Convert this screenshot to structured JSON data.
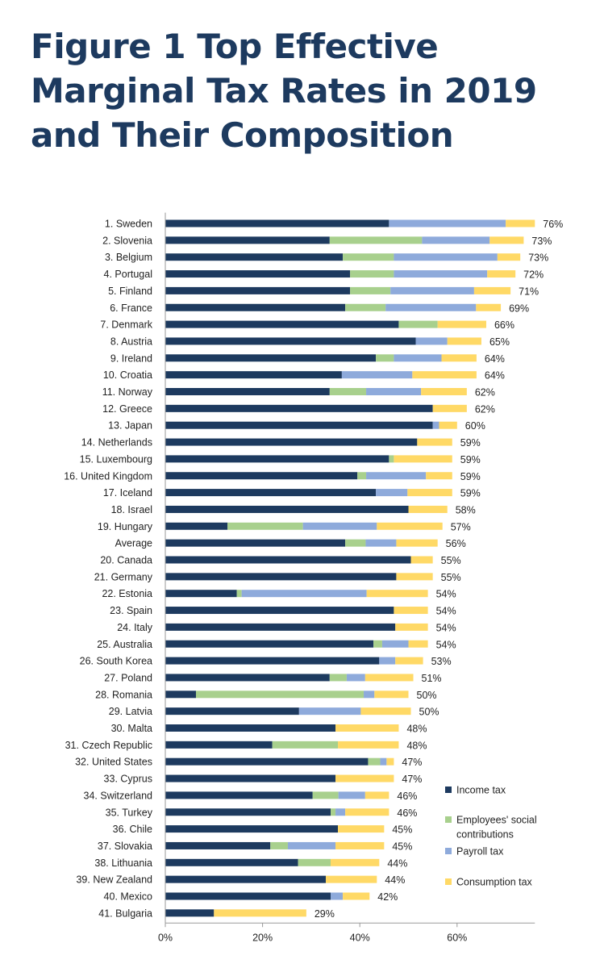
{
  "title": "Figure 1 Top Effective Marginal Tax Rates in 2019 and Their Composition",
  "colors": {
    "income": "#1d3a5f",
    "social": "#a8d08d",
    "payroll": "#8eaadb",
    "consumption": "#ffd966",
    "title": "#1d3a5f"
  },
  "chart_data": {
    "type": "bar",
    "orientation": "horizontal",
    "stacked": true,
    "title": "Figure 1 Top Effective Marginal Tax Rates in 2019 and Their Composition",
    "xlabel": "",
    "ylabel": "",
    "xlim": [
      0,
      76
    ],
    "x_ticks": [
      "0%",
      "20%",
      "40%",
      "60%"
    ],
    "legend_position": "right",
    "grid": false,
    "categories": [
      "1. Sweden",
      "2. Slovenia",
      "3. Belgium",
      "4. Portugal",
      "5. Finland",
      "6. France",
      "7. Denmark",
      "8. Austria",
      "9. Ireland",
      "10. Croatia",
      "11. Norway",
      "12. Greece",
      "13. Japan",
      "14. Netherlands",
      "15. Luxembourg",
      "16. United Kingdom",
      "17. Iceland",
      "18. Israel",
      "19. Hungary",
      "Average",
      "20. Canada",
      "21. Germany",
      "22. Estonia",
      "23. Spain",
      "24. Italy",
      "25. Australia",
      "26. South Korea",
      "27. Poland",
      "28. Romania",
      "29. Latvia",
      "30. Malta",
      "31. Czech Republic",
      "32. United States",
      "33. Cyprus",
      "34. Switzerland",
      "35. Turkey",
      "36. Chile",
      "37. Slovakia",
      "38. Lithuania",
      "39. New Zealand",
      "40. Mexico",
      "41. Bulgaria"
    ],
    "series": [
      {
        "name": "Income tax",
        "color": "#1d3a5f",
        "values": [
          46,
          33.8,
          36.5,
          38,
          38,
          37,
          48,
          51.5,
          43.3,
          36.3,
          33.8,
          55,
          55,
          51.8,
          46,
          39.5,
          43.3,
          50,
          12.8,
          37,
          50.5,
          47.5,
          14.7,
          47,
          47.3,
          42.8,
          44,
          33.8,
          6.3,
          27.5,
          35,
          22,
          41.7,
          35,
          30.3,
          34,
          35.5,
          21.6,
          27.3,
          33,
          34,
          10
        ]
      },
      {
        "name": "Employees' social contributions",
        "color": "#a8d08d",
        "values": [
          0,
          19,
          10.5,
          9,
          8.3,
          8.3,
          8,
          0,
          3.7,
          0,
          7.5,
          0,
          0,
          0,
          1,
          1.8,
          0,
          0,
          15.5,
          4.2,
          0,
          0,
          1,
          0,
          0,
          1.8,
          0,
          3.5,
          34.5,
          0,
          0,
          13.5,
          2.5,
          0,
          5.3,
          1,
          0,
          3.6,
          6.7,
          0,
          0,
          0
        ]
      },
      {
        "name": "Payroll tax",
        "color": "#8eaadb",
        "values": [
          24,
          13.9,
          21.3,
          19.2,
          17.2,
          18.6,
          0,
          6.5,
          9.8,
          14.5,
          11.3,
          0,
          1.3,
          0,
          0,
          12.3,
          6.5,
          0,
          15.2,
          6.3,
          0,
          0,
          25.7,
          0,
          0,
          5.4,
          3.3,
          3.8,
          2.2,
          12.7,
          0,
          0,
          1.3,
          0,
          5.5,
          2,
          0,
          9.8,
          0,
          0,
          2.5,
          0
        ]
      },
      {
        "name": "Consumption tax",
        "color": "#ffd966",
        "values": [
          6,
          7,
          4.7,
          5.8,
          7.5,
          5.1,
          10,
          7,
          7.2,
          13.2,
          9.4,
          7,
          3.7,
          7.2,
          12,
          5.4,
          9.2,
          8,
          13.5,
          8.5,
          4.5,
          7.5,
          12.6,
          7,
          6.7,
          4,
          5.7,
          9.9,
          7,
          10.3,
          13,
          12.5,
          1.5,
          12,
          4.9,
          9,
          9.5,
          10,
          10,
          10.5,
          5.5,
          19
        ]
      }
    ],
    "totals": [
      76,
      73,
      73,
      72,
      71,
      69,
      66,
      65,
      64,
      64,
      62,
      62,
      60,
      59,
      59,
      59,
      59,
      58,
      57,
      56,
      55,
      55,
      54,
      54,
      54,
      54,
      53,
      51,
      50,
      50,
      48,
      48,
      47,
      47,
      46,
      46,
      45,
      45,
      44,
      44,
      42,
      29
    ],
    "total_labels": [
      "76%",
      "73%",
      "73%",
      "72%",
      "71%",
      "69%",
      "66%",
      "65%",
      "64%",
      "64%",
      "62%",
      "62%",
      "60%",
      "59%",
      "59%",
      "59%",
      "59%",
      "58%",
      "57%",
      "56%",
      "55%",
      "55%",
      "54%",
      "54%",
      "54%",
      "54%",
      "53%",
      "51%",
      "50%",
      "50%",
      "48%",
      "48%",
      "47%",
      "47%",
      "46%",
      "46%",
      "45%",
      "45%",
      "44%",
      "44%",
      "42%",
      "29%"
    ],
    "legend": [
      {
        "label_lines": [
          "Income tax"
        ],
        "color": "#1d3a5f"
      },
      {
        "label_lines": [
          "Employees' social",
          "contributions"
        ],
        "color": "#a8d08d"
      },
      {
        "label_lines": [
          "Payroll tax"
        ],
        "color": "#8eaadb"
      },
      {
        "label_lines": [
          "Consumption tax"
        ],
        "color": "#ffd966"
      }
    ]
  }
}
